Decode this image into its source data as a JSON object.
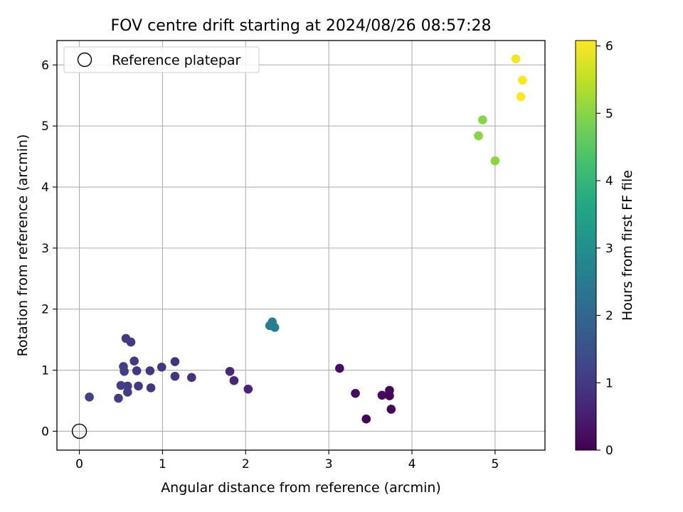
{
  "chart_data": {
    "type": "scatter",
    "title": "FOV centre drift starting at 2024/08/26 08:57:28",
    "xlabel": "Angular distance from reference (arcmin)",
    "ylabel": "Rotation from reference (arcmin)",
    "xlim": [
      -0.27,
      5.6
    ],
    "ylim": [
      -0.31,
      6.4
    ],
    "xticks": [
      "0",
      "1",
      "2",
      "3",
      "4",
      "5"
    ],
    "yticks": [
      "0",
      "1",
      "2",
      "3",
      "4",
      "5",
      "6"
    ],
    "grid": true,
    "legend": {
      "position": "top-left",
      "entries": [
        "Reference platepar"
      ]
    },
    "reference_point": {
      "x": 0,
      "y": 0
    },
    "colorbar": {
      "label": "Hours from first FF file",
      "range": [
        0,
        6.08
      ],
      "ticks": [
        "0",
        "1",
        "2",
        "3",
        "4",
        "5",
        "6"
      ],
      "colormap": "viridis"
    },
    "points": [
      {
        "x": 3.45,
        "y": 0.2,
        "c": 0.05
      },
      {
        "x": 3.75,
        "y": 0.36,
        "c": 0.08
      },
      {
        "x": 3.73,
        "y": 0.58,
        "c": 0.1
      },
      {
        "x": 3.73,
        "y": 0.67,
        "c": 0.12
      },
      {
        "x": 3.64,
        "y": 0.59,
        "c": 0.15
      },
      {
        "x": 3.32,
        "y": 0.62,
        "c": 0.2
      },
      {
        "x": 3.13,
        "y": 1.03,
        "c": 0.25
      },
      {
        "x": 2.03,
        "y": 0.69,
        "c": 0.6
      },
      {
        "x": 1.86,
        "y": 0.83,
        "c": 0.65
      },
      {
        "x": 1.81,
        "y": 0.98,
        "c": 0.7
      },
      {
        "x": 1.35,
        "y": 0.88,
        "c": 0.85
      },
      {
        "x": 1.15,
        "y": 1.14,
        "c": 0.9
      },
      {
        "x": 1.15,
        "y": 0.9,
        "c": 0.9
      },
      {
        "x": 0.99,
        "y": 1.05,
        "c": 0.95
      },
      {
        "x": 0.86,
        "y": 0.71,
        "c": 1.0
      },
      {
        "x": 0.85,
        "y": 0.99,
        "c": 1.0
      },
      {
        "x": 0.71,
        "y": 0.74,
        "c": 1.0
      },
      {
        "x": 0.69,
        "y": 0.99,
        "c": 1.05
      },
      {
        "x": 0.66,
        "y": 1.15,
        "c": 1.05
      },
      {
        "x": 0.62,
        "y": 1.46,
        "c": 1.05
      },
      {
        "x": 0.56,
        "y": 1.52,
        "c": 1.05
      },
      {
        "x": 0.58,
        "y": 0.74,
        "c": 1.05
      },
      {
        "x": 0.58,
        "y": 0.64,
        "c": 1.1
      },
      {
        "x": 0.53,
        "y": 1.06,
        "c": 1.1
      },
      {
        "x": 0.54,
        "y": 0.98,
        "c": 1.1
      },
      {
        "x": 0.5,
        "y": 0.75,
        "c": 1.1
      },
      {
        "x": 0.47,
        "y": 0.54,
        "c": 1.1
      },
      {
        "x": 0.12,
        "y": 0.56,
        "c": 1.15
      },
      {
        "x": 2.29,
        "y": 1.73,
        "c": 2.55
      },
      {
        "x": 2.32,
        "y": 1.79,
        "c": 2.55
      },
      {
        "x": 2.35,
        "y": 1.7,
        "c": 2.6
      },
      {
        "x": 4.8,
        "y": 4.84,
        "c": 5.0
      },
      {
        "x": 4.85,
        "y": 5.1,
        "c": 5.0
      },
      {
        "x": 5.0,
        "y": 4.43,
        "c": 5.05
      },
      {
        "x": 5.25,
        "y": 6.1,
        "c": 6.0
      },
      {
        "x": 5.33,
        "y": 5.75,
        "c": 6.05
      },
      {
        "x": 5.31,
        "y": 5.48,
        "c": 6.05
      }
    ]
  }
}
